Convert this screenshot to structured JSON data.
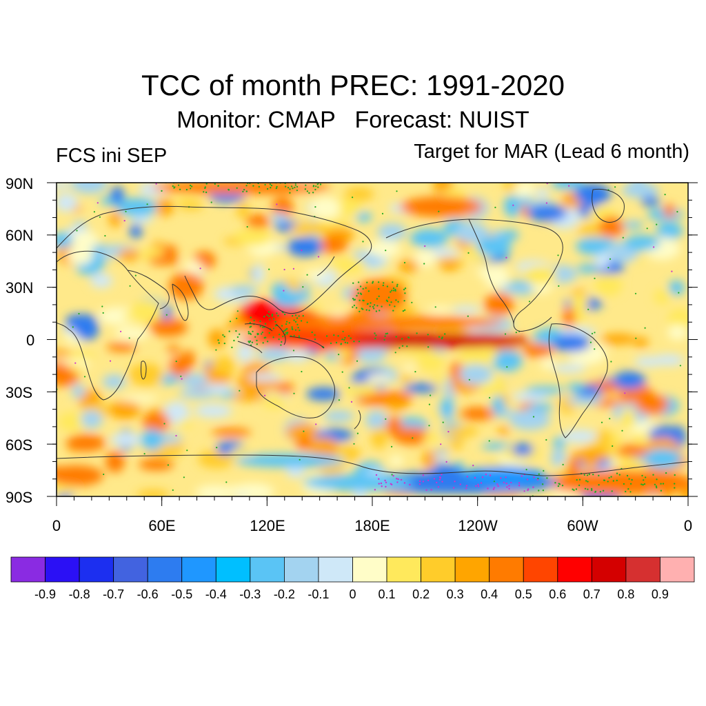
{
  "title": "TCC of month PREC: 1991-2020",
  "subtitle": "Monitor: CMAP   Forecast: NUIST",
  "left_label": "FCS ini SEP",
  "right_label": "Target for MAR (Lead 6 month)",
  "lat_axis": [
    "90N",
    "60N",
    "30N",
    "0",
    "30S",
    "60S",
    "90S"
  ],
  "lon_axis": [
    "0",
    "60E",
    "120E",
    "180E",
    "120W",
    "60W",
    "0"
  ],
  "colorbar": {
    "colors": [
      "#8a2be2",
      "#2b10f5",
      "#1c2ff0",
      "#4263e0",
      "#2d7cf0",
      "#1f97ff",
      "#00bfff",
      "#5ac4f5",
      "#a3d3f0",
      "#cfe8f8",
      "#fffdc8",
      "#ffe95c",
      "#ffcc2a",
      "#ffa500",
      "#ff7b00",
      "#ff4500",
      "#ff0000",
      "#d40000",
      "#d63030",
      "#ffb0b0"
    ],
    "labels": [
      "-0.9",
      "-0.8",
      "-0.7",
      "-0.6",
      "-0.5",
      "-0.4",
      "-0.3",
      "-0.2",
      "-0.1",
      "0",
      "0.1",
      "0.2",
      "0.3",
      "0.4",
      "0.5",
      "0.6",
      "0.7",
      "0.8",
      "0.9"
    ]
  }
}
